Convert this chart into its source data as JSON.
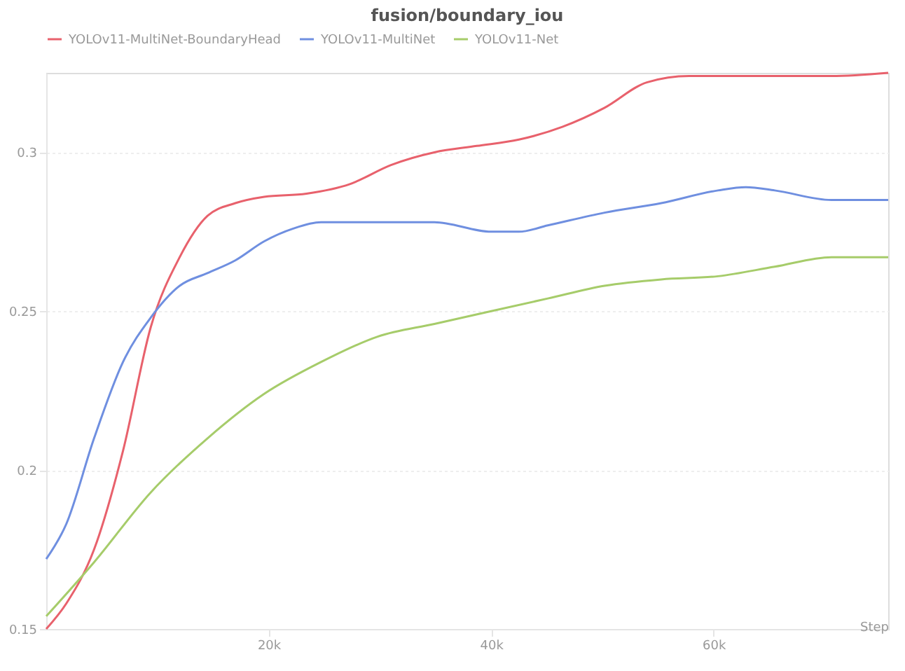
{
  "chart_data": {
    "type": "line",
    "title": "fusion/boundary_iou",
    "xlabel": "Step",
    "xlim": [
      0,
      75700
    ],
    "xticks": [
      {
        "value": 20000,
        "label": "20k"
      },
      {
        "value": 40000,
        "label": "40k"
      },
      {
        "value": 60000,
        "label": "60k"
      }
    ],
    "ylim": [
      0.15,
      0.325
    ],
    "yticks": [
      0.15,
      0.2,
      0.25,
      0.3
    ],
    "grid": "y",
    "legend": "top",
    "series": [
      {
        "name": "YOLOv11-MultiNet-BoundaryHead",
        "color": "#e8616c",
        "x": [
          0,
          1800,
          4300,
          6900,
          9400,
          12000,
          14500,
          17000,
          19600,
          23400,
          27300,
          31000,
          34900,
          38700,
          42500,
          46400,
          50200,
          54000,
          57800,
          64200,
          70600,
          75700
        ],
        "values": [
          0.15,
          0.158,
          0.175,
          0.206,
          0.245,
          0.267,
          0.28,
          0.284,
          0.286,
          0.287,
          0.29,
          0.296,
          0.3,
          0.302,
          0.304,
          0.308,
          0.314,
          0.322,
          0.324,
          0.324,
          0.324,
          0.325
        ]
      },
      {
        "name": "YOLOv11-MultiNet",
        "color": "#6f8fe0",
        "x": [
          0,
          1800,
          4300,
          6900,
          9400,
          12000,
          14500,
          17000,
          19600,
          22200,
          24700,
          29800,
          34900,
          40000,
          42500,
          45100,
          50200,
          55300,
          60400,
          62900,
          65500,
          70600,
          75700
        ],
        "values": [
          0.172,
          0.183,
          0.21,
          0.234,
          0.248,
          0.258,
          0.262,
          0.266,
          0.272,
          0.276,
          0.278,
          0.278,
          0.278,
          0.275,
          0.275,
          0.277,
          0.281,
          0.284,
          0.288,
          0.289,
          0.288,
          0.285,
          0.285
        ]
      },
      {
        "name": "YOLOv11-Net",
        "color": "#a6cc6a",
        "x": [
          0,
          4300,
          9400,
          14500,
          19600,
          24700,
          29800,
          34900,
          40000,
          45100,
          50200,
          55300,
          60400,
          65500,
          70600,
          75700
        ],
        "values": [
          0.154,
          0.171,
          0.193,
          0.21,
          0.224,
          0.234,
          0.242,
          0.246,
          0.25,
          0.254,
          0.258,
          0.26,
          0.261,
          0.264,
          0.267,
          0.267
        ]
      }
    ]
  }
}
